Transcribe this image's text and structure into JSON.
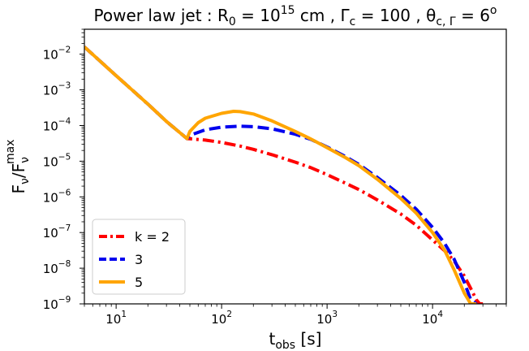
{
  "chart_data": {
    "type": "line",
    "title": "Power law jet : R₀ = 10¹⁵ cm , Γc = 100 , θc,Γ = 6°",
    "title_parts": {
      "prefix": "Power law jet : R",
      "r_sub": "0",
      "r_eq": " = 10",
      "r_exp": "15",
      "r_unit": " cm , Γ",
      "gamma_sub": "c",
      "gamma_eq": " = 100 , θ",
      "theta_sub": "c, Γ",
      "theta_eq": " = 6",
      "theta_sup": "o"
    },
    "xlabel": "t_obs [s]",
    "xlabel_parts": {
      "main": "t",
      "sub": "obs",
      "unit": " [s]"
    },
    "ylabel": "F_ν / F_ν^max",
    "ylabel_parts": {
      "f1": "F",
      "nu1": "ν",
      "slash": "/F",
      "nu2": "ν",
      "max": "max"
    },
    "x_scale": "log",
    "y_scale": "log",
    "xlim": [
      5,
      50000
    ],
    "ylim": [
      1e-09,
      0.05
    ],
    "x_ticks": [
      {
        "base": "10",
        "exp": "1",
        "value": 10
      },
      {
        "base": "10",
        "exp": "2",
        "value": 100
      },
      {
        "base": "10",
        "exp": "3",
        "value": 1000
      },
      {
        "base": "10",
        "exp": "4",
        "value": 10000
      }
    ],
    "y_ticks": [
      {
        "base": "10",
        "exp": "−2",
        "value": 0.01
      },
      {
        "base": "10",
        "exp": "−3",
        "value": 0.001
      },
      {
        "base": "10",
        "exp": "−4",
        "value": 0.0001
      },
      {
        "base": "10",
        "exp": "−5",
        "value": 1e-05
      },
      {
        "base": "10",
        "exp": "−6",
        "value": 1e-06
      },
      {
        "base": "10",
        "exp": "−7",
        "value": 1e-07
      },
      {
        "base": "10",
        "exp": "−8",
        "value": 1e-08
      },
      {
        "base": "10",
        "exp": "−9",
        "value": 1e-09
      }
    ],
    "grid": false,
    "legend_position": "lower-left",
    "series": [
      {
        "name": "k = 2",
        "color": "#ff0000",
        "style": "dashdot",
        "x": [
          5,
          10,
          20,
          30,
          47,
          50,
          70,
          100,
          150,
          200,
          300,
          500,
          700,
          1000,
          1500,
          2000,
          3000,
          5000,
          7000,
          10000,
          13000,
          16000,
          20000,
          23000,
          26000,
          28000,
          30000
        ],
        "y": [
          0.016,
          0.0025,
          0.0004,
          0.00013,
          4.3e-05,
          4.25e-05,
          3.9e-05,
          3.35e-05,
          2.65e-05,
          2.15e-05,
          1.52e-05,
          9.4e-06,
          6.6e-06,
          4.2e-06,
          2.4e-06,
          1.6e-06,
          8.2e-07,
          3.3e-07,
          1.6e-07,
          6.2e-08,
          3.1e-08,
          1.6e-08,
          6e-09,
          2.7e-09,
          1.3e-09,
          1e-09,
          1e-09
        ]
      },
      {
        "name": "3",
        "color": "#0000ee",
        "style": "dashed",
        "x": [
          5,
          10,
          20,
          30,
          47,
          50,
          70,
          100,
          150,
          200,
          300,
          500,
          700,
          1000,
          1500,
          2000,
          3000,
          5000,
          7000,
          10000,
          13000,
          16000,
          20000,
          23000,
          26000
        ],
        "y": [
          0.016,
          0.0025,
          0.0004,
          0.00013,
          4.3e-05,
          5.3e-05,
          7.6e-05,
          9e-05,
          9.6e-05,
          9.3e-05,
          8.1e-05,
          5.7e-05,
          4.1e-05,
          2.5e-05,
          1.34e-05,
          8.1e-06,
          3.5e-06,
          1.1e-06,
          4.5e-07,
          1.4e-07,
          5e-08,
          1.8e-08,
          4e-09,
          1.3e-09,
          1e-09
        ]
      },
      {
        "name": "5",
        "color": "#ffa500",
        "style": "solid",
        "x": [
          5,
          10,
          20,
          30,
          47,
          50,
          60,
          70,
          100,
          130,
          150,
          200,
          300,
          500,
          700,
          1000,
          1500,
          2000,
          3000,
          5000,
          7000,
          10000,
          13000,
          16000,
          20000,
          23000,
          25000,
          26000
        ],
        "y": [
          0.016,
          0.0025,
          0.0004,
          0.00013,
          4.3e-05,
          6.8e-05,
          0.00012,
          0.00016,
          0.00022,
          0.00025,
          0.000245,
          0.00021,
          0.000135,
          6.8e-05,
          4.2e-05,
          2.4e-05,
          1.25e-05,
          7.5e-06,
          3.1e-06,
          9e-07,
          3.5e-07,
          1e-07,
          3.2e-08,
          9e-09,
          2e-09,
          1e-09,
          1e-09,
          1e-09
        ]
      }
    ]
  }
}
